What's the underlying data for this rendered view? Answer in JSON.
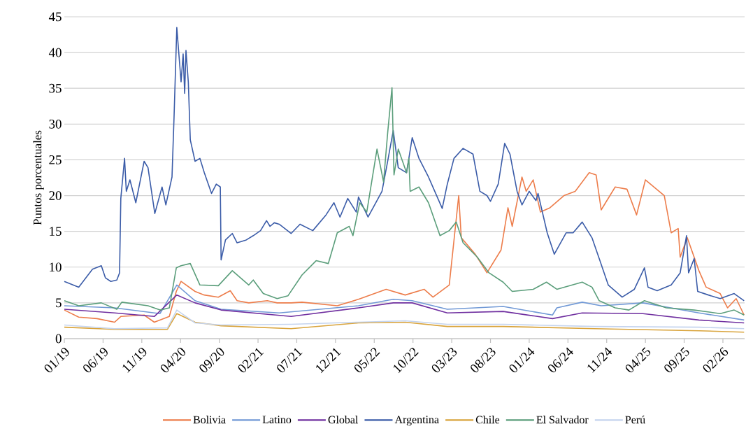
{
  "chart_data": {
    "type": "line",
    "ylabel": "Puntos porcentuales",
    "xlim": [
      "2019-01-01",
      "2026-04-25"
    ],
    "ylim": [
      0,
      45
    ],
    "yticks": [
      0,
      5,
      10,
      15,
      20,
      25,
      30,
      35,
      40,
      45
    ],
    "xticks": [
      {
        "value": "2019-01-01",
        "label": "01/19"
      },
      {
        "value": "2019-06-01",
        "label": "06/19"
      },
      {
        "value": "2019-11-01",
        "label": "11/19"
      },
      {
        "value": "2020-04-01",
        "label": "04/20"
      },
      {
        "value": "2020-09-01",
        "label": "09/20"
      },
      {
        "value": "2021-02-01",
        "label": "02/21"
      },
      {
        "value": "2021-07-01",
        "label": "07/21"
      },
      {
        "value": "2021-12-01",
        "label": "12/21"
      },
      {
        "value": "2022-05-01",
        "label": "05/22"
      },
      {
        "value": "2022-10-01",
        "label": "10/22"
      },
      {
        "value": "2023-03-01",
        "label": "03/23"
      },
      {
        "value": "2023-08-01",
        "label": "08/23"
      },
      {
        "value": "2024-01-01",
        "label": "01/24"
      },
      {
        "value": "2024-06-01",
        "label": "06/24"
      },
      {
        "value": "2024-11-01",
        "label": "11/24"
      },
      {
        "value": "2025-04-01",
        "label": "04/25"
      },
      {
        "value": "2025-09-01",
        "label": "09/25"
      },
      {
        "value": "2026-02-01",
        "label": "02/26"
      }
    ],
    "grid": "y",
    "legend": "bottom",
    "series": [
      {
        "name": "Bolivia",
        "color": "#ed7d4b",
        "x": [
          "2019-01-01",
          "2019-02-25",
          "2019-05-08",
          "2019-07-16",
          "2019-08-10",
          "2019-11-10",
          "2019-12-20",
          "2020-02-17",
          "2020-03-15",
          "2020-04-03",
          "2020-05-28",
          "2020-07-03",
          "2020-08-28",
          "2020-10-14",
          "2020-11-10",
          "2020-12-26",
          "2021-03-07",
          "2021-04-15",
          "2021-06-09",
          "2021-07-22",
          "2021-12-08",
          "2022-02-28",
          "2022-06-17",
          "2022-09-01",
          "2022-11-14",
          "2022-12-19",
          "2023-02-20",
          "2023-03-29",
          "2023-04-08",
          "2023-06-02",
          "2023-07-18",
          "2023-09-12",
          "2023-10-09",
          "2023-10-26",
          "2023-12-03",
          "2023-12-20",
          "2024-01-17",
          "2024-02-14",
          "2024-03-22",
          "2024-05-16",
          "2024-06-29",
          "2024-08-24",
          "2024-09-20",
          "2024-10-10",
          "2024-12-04",
          "2025-01-20",
          "2025-02-25",
          "2025-04-01",
          "2025-06-14",
          "2025-07-11",
          "2025-08-08",
          "2025-08-16",
          "2025-09-13",
          "2025-10-29",
          "2025-11-26",
          "2026-01-21",
          "2026-02-18",
          "2026-03-23",
          "2026-04-23"
        ],
        "values": [
          4.0,
          3.0,
          2.8,
          2.3,
          3.1,
          3.3,
          2.3,
          3.1,
          6.6,
          8.0,
          6.6,
          6.1,
          5.8,
          6.7,
          5.3,
          5.0,
          5.3,
          5.0,
          5.0,
          5.1,
          4.6,
          5.5,
          6.9,
          6.1,
          6.9,
          5.8,
          7.5,
          20.0,
          14.1,
          11.8,
          9.2,
          12.4,
          18.3,
          15.7,
          22.6,
          20.6,
          22.2,
          17.7,
          18.3,
          20.0,
          20.6,
          23.2,
          22.9,
          18.0,
          21.2,
          20.9,
          17.3,
          22.2,
          20.0,
          14.8,
          15.4,
          11.4,
          14.1,
          9.5,
          7.2,
          6.3,
          4.3,
          5.6,
          3.3
        ]
      },
      {
        "name": "Latino",
        "color": "#7199d6",
        "x": [
          "2019-01-01",
          "2019-07-16",
          "2020-01-12",
          "2020-03-17",
          "2020-05-28",
          "2020-09-08",
          "2021-04-23",
          "2022-02-28",
          "2022-07-15",
          "2022-09-28",
          "2023-02-13",
          "2023-09-20",
          "2024-04-01",
          "2024-04-18",
          "2024-07-27",
          "2024-10-10",
          "2025-03-22",
          "2025-10-29",
          "2026-04-23"
        ],
        "values": [
          4.6,
          4.3,
          3.5,
          7.5,
          5.3,
          4.1,
          3.6,
          4.6,
          5.5,
          5.3,
          4.1,
          4.5,
          3.3,
          4.3,
          5.1,
          4.6,
          5.0,
          3.6,
          2.6
        ]
      },
      {
        "name": "Global",
        "color": "#7030a0",
        "x": [
          "2019-01-01",
          "2019-07-16",
          "2019-12-20",
          "2020-03-17",
          "2020-05-28",
          "2020-09-08",
          "2021-06-09",
          "2022-02-28",
          "2022-07-15",
          "2022-09-28",
          "2023-02-13",
          "2023-09-20",
          "2024-04-01",
          "2024-07-27",
          "2025-03-22",
          "2025-10-29",
          "2026-04-23"
        ],
        "values": [
          4.1,
          3.6,
          3.1,
          6.1,
          5.0,
          4.0,
          3.1,
          4.3,
          5.0,
          5.0,
          3.6,
          3.8,
          2.8,
          3.6,
          3.5,
          2.6,
          2.2
        ]
      },
      {
        "name": "Argentina",
        "color": "#3b5ca8",
        "x": [
          "2019-01-01",
          "2019-02-25",
          "2019-04-20",
          "2019-05-25",
          "2019-06-10",
          "2019-07-01",
          "2019-07-25",
          "2019-08-05",
          "2019-08-10",
          "2019-08-25",
          "2019-09-01",
          "2019-09-15",
          "2019-10-08",
          "2019-11-10",
          "2019-11-25",
          "2019-12-22",
          "2020-01-20",
          "2020-02-04",
          "2020-02-27",
          "2020-03-06",
          "2020-03-17",
          "2020-04-03",
          "2020-04-11",
          "2020-04-17",
          "2020-04-22",
          "2020-05-01",
          "2020-05-09",
          "2020-05-28",
          "2020-06-16",
          "2020-07-03",
          "2020-08-01",
          "2020-08-20",
          "2020-09-05",
          "2020-09-08",
          "2020-09-25",
          "2020-10-22",
          "2020-11-10",
          "2020-12-16",
          "2021-01-13",
          "2021-02-10",
          "2021-03-04",
          "2021-03-18",
          "2021-04-04",
          "2021-04-23",
          "2021-06-09",
          "2021-07-14",
          "2021-09-03",
          "2021-10-25",
          "2021-11-25",
          "2021-12-19",
          "2022-01-19",
          "2022-02-20",
          "2022-02-28",
          "2022-04-07",
          "2022-05-12",
          "2022-06-01",
          "2022-06-23",
          "2022-07-15",
          "2022-08-04",
          "2022-09-06",
          "2022-09-28",
          "2022-10-25",
          "2022-12-01",
          "2023-01-25",
          "2023-02-13",
          "2023-03-10",
          "2023-04-15",
          "2023-05-24",
          "2023-06-20",
          "2023-07-18",
          "2023-08-01",
          "2023-09-01",
          "2023-09-26",
          "2023-10-17",
          "2023-11-14",
          "2023-12-03",
          "2024-01-01",
          "2024-01-28",
          "2024-02-05",
          "2024-03-11",
          "2024-04-08",
          "2024-05-25",
          "2024-06-21",
          "2024-07-27",
          "2024-09-04",
          "2024-10-02",
          "2024-11-07",
          "2025-01-01",
          "2025-02-17",
          "2025-03-28",
          "2025-04-11",
          "2025-05-17",
          "2025-07-11",
          "2025-08-16",
          "2025-09-10",
          "2025-09-18",
          "2025-10-10",
          "2025-10-24",
          "2025-12-05",
          "2026-01-21",
          "2026-03-15",
          "2026-04-23"
        ],
        "values": [
          8.0,
          7.2,
          9.7,
          10.2,
          8.5,
          8.0,
          8.2,
          9.2,
          19.6,
          25.2,
          20.6,
          22.2,
          19.0,
          24.8,
          23.9,
          17.5,
          21.2,
          18.7,
          22.6,
          31.0,
          43.5,
          35.9,
          39.8,
          34.3,
          40.3,
          35.9,
          27.8,
          24.8,
          25.2,
          23.2,
          20.3,
          21.6,
          21.2,
          11.0,
          13.8,
          14.7,
          13.4,
          13.8,
          14.4,
          15.1,
          16.5,
          15.7,
          16.2,
          16.0,
          14.7,
          16.0,
          15.1,
          17.3,
          19.0,
          17.0,
          19.6,
          17.7,
          19.8,
          17.0,
          19.3,
          20.6,
          24.8,
          29.1,
          23.9,
          23.2,
          28.1,
          25.2,
          22.6,
          18.2,
          21.6,
          25.2,
          26.6,
          25.8,
          20.6,
          20.0,
          19.2,
          21.6,
          27.3,
          25.8,
          20.6,
          18.7,
          20.6,
          19.3,
          20.3,
          14.8,
          11.8,
          14.8,
          14.8,
          16.3,
          14.1,
          11.2,
          7.5,
          5.8,
          6.9,
          9.9,
          7.2,
          6.7,
          7.5,
          9.2,
          14.4,
          9.2,
          11.2,
          6.6,
          6.1,
          5.6,
          6.3,
          5.3
        ]
      },
      {
        "name": "Chile",
        "color": "#d9a43c",
        "x": [
          "2019-01-01",
          "2019-07-16",
          "2020-02-10",
          "2020-03-17",
          "2020-05-28",
          "2020-09-08",
          "2021-06-09",
          "2022-02-28",
          "2022-09-01",
          "2023-02-13",
          "2023-09-20",
          "2024-09-13",
          "2025-10-29",
          "2026-04-23"
        ],
        "values": [
          1.6,
          1.3,
          1.3,
          3.5,
          2.3,
          1.8,
          1.4,
          2.2,
          2.3,
          1.7,
          1.7,
          1.4,
          1.1,
          0.9
        ]
      },
      {
        "name": "El Salvador",
        "color": "#5b9e7b",
        "x": [
          "2019-01-01",
          "2019-02-25",
          "2019-05-25",
          "2019-07-25",
          "2019-08-14",
          "2019-11-25",
          "2020-01-12",
          "2020-02-17",
          "2020-03-15",
          "2020-04-03",
          "2020-05-09",
          "2020-06-16",
          "2020-08-28",
          "2020-10-22",
          "2020-12-26",
          "2021-01-13",
          "2021-02-20",
          "2021-04-15",
          "2021-05-28",
          "2021-07-22",
          "2021-09-16",
          "2021-11-03",
          "2021-12-08",
          "2022-01-25",
          "2022-02-08",
          "2022-03-05",
          "2022-04-02",
          "2022-05-12",
          "2022-06-07",
          "2022-06-23",
          "2022-07-10",
          "2022-07-18",
          "2022-08-04",
          "2022-09-06",
          "2022-09-15",
          "2022-09-20",
          "2022-10-25",
          "2022-12-01",
          "2023-01-16",
          "2023-02-20",
          "2023-03-19",
          "2023-04-15",
          "2023-06-10",
          "2023-07-26",
          "2023-09-20",
          "2023-10-26",
          "2024-01-17",
          "2024-03-08",
          "2024-04-18",
          "2024-07-27",
          "2024-09-04",
          "2024-10-02",
          "2024-12-04",
          "2025-01-28",
          "2025-03-28",
          "2025-06-22",
          "2025-10-10",
          "2026-01-21",
          "2026-03-15",
          "2026-04-23"
        ],
        "values": [
          5.3,
          4.6,
          5.0,
          4.1,
          5.1,
          4.6,
          4.0,
          4.3,
          9.9,
          10.2,
          10.5,
          7.5,
          7.4,
          9.5,
          7.5,
          8.2,
          6.3,
          5.6,
          6.0,
          8.9,
          10.9,
          10.5,
          14.8,
          15.7,
          14.4,
          19.0,
          17.7,
          26.5,
          21.9,
          28.8,
          35.1,
          22.9,
          26.5,
          23.2,
          25.2,
          20.6,
          21.2,
          19.0,
          14.4,
          15.1,
          16.3,
          13.4,
          11.4,
          9.2,
          7.9,
          6.6,
          6.9,
          7.9,
          6.9,
          7.9,
          7.2,
          5.3,
          4.3,
          4.0,
          5.3,
          4.3,
          4.0,
          3.5,
          4.0,
          3.3
        ]
      },
      {
        "name": "Perú",
        "color": "#c5d4ee",
        "x": [
          "2019-01-01",
          "2019-07-16",
          "2020-02-10",
          "2020-03-17",
          "2020-05-28",
          "2020-09-08",
          "2021-06-09",
          "2022-02-28",
          "2022-09-01",
          "2023-02-13",
          "2023-09-20",
          "2024-09-13",
          "2025-10-29",
          "2026-04-23"
        ],
        "values": [
          1.9,
          1.4,
          1.5,
          4.0,
          2.2,
          1.9,
          2.0,
          2.3,
          2.5,
          2.0,
          2.0,
          1.7,
          1.6,
          1.4
        ]
      }
    ]
  }
}
